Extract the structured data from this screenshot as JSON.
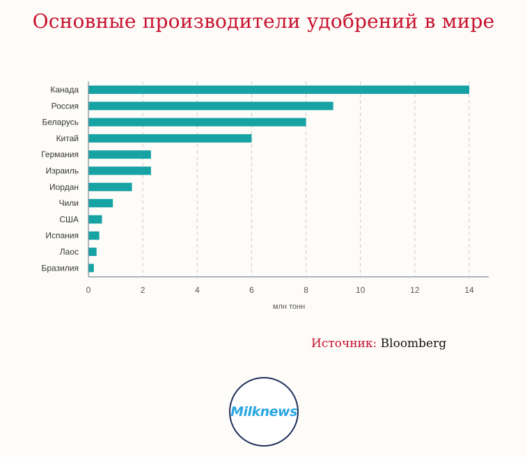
{
  "header": {
    "title": "Основные производители удобрений в мире"
  },
  "source": {
    "label": "Источник:",
    "value": "Bloomberg"
  },
  "logo": {
    "text": "Milknews"
  },
  "colors": {
    "bar": "#17a2a4",
    "title": "#c8102e",
    "grid": "#c9c9c9",
    "axis": "#7a8a99"
  },
  "chart_data": {
    "type": "bar",
    "orientation": "horizontal",
    "title": "Основные производители удобрений в мире",
    "xlabel": "млн тонн",
    "ylabel": "",
    "xlim": [
      0,
      14
    ],
    "xticks": [
      0,
      2,
      4,
      6,
      8,
      10,
      12,
      14
    ],
    "grid": "vertical dashed",
    "categories": [
      "Канада",
      "Россия",
      "Беларусь",
      "Китай",
      "Германия",
      "Израиль",
      "Иордан",
      "Чили",
      "США",
      "Испания",
      "Лаос",
      "Бразилия"
    ],
    "values": [
      14,
      9,
      8,
      6,
      2.3,
      2.3,
      1.6,
      0.9,
      0.5,
      0.4,
      0.3,
      0.2
    ]
  }
}
